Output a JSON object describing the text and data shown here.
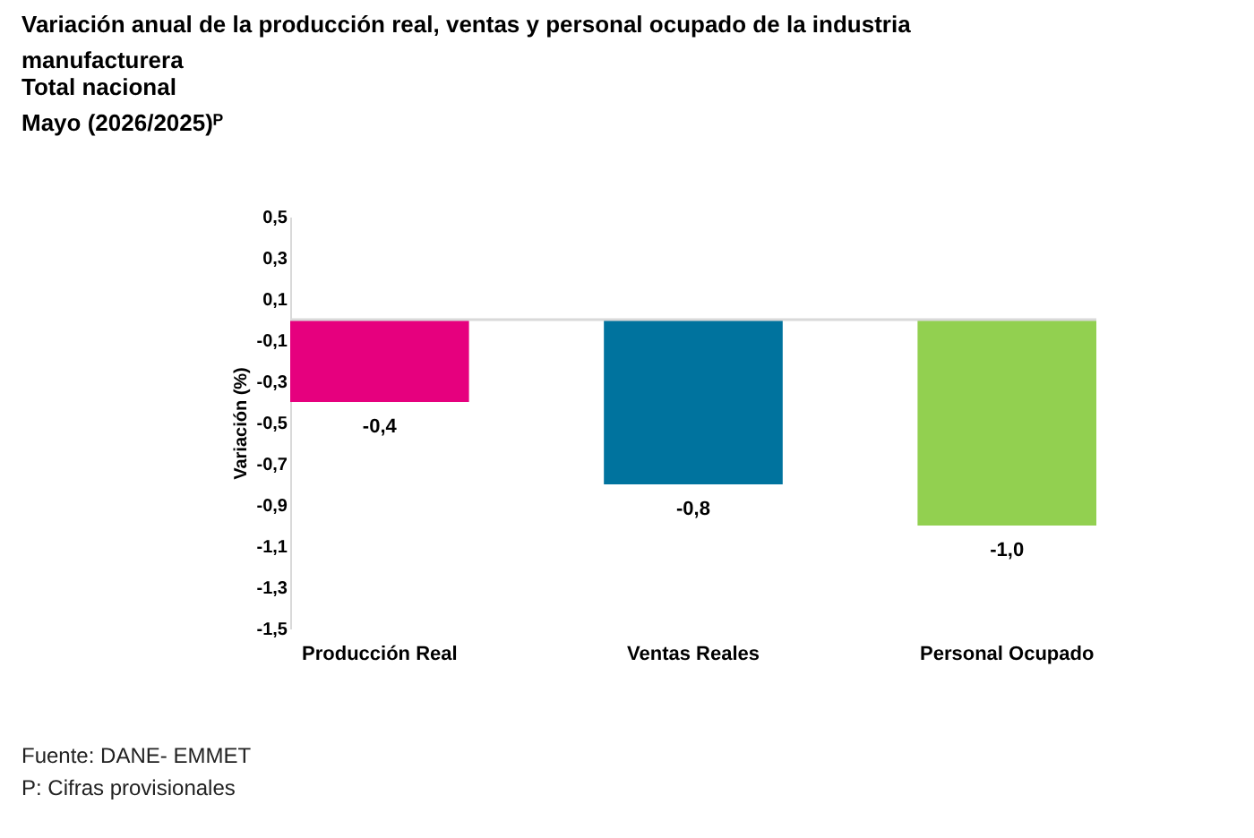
{
  "chart_data": {
    "type": "bar",
    "title": "Variación anual de la producción real, ventas y personal ocupado de la industria manufacturera",
    "subtitle": "Total nacional\nMayo (2026/2025)ᴾ",
    "ylabel": "Variación (%)",
    "categories": [
      "Producción Real",
      "Ventas Reales",
      "Personal Ocupado"
    ],
    "values": [
      -0.4,
      -0.8,
      -1.0
    ],
    "colors": [
      "#e6007e",
      "#00739e",
      "#92d050"
    ],
    "value_labels": [
      "-0,4",
      "-0,8",
      "-1,0"
    ],
    "ylim": [
      -1.5,
      0.5
    ],
    "yticks": [
      {
        "value": 0.5,
        "label": "0,5"
      },
      {
        "value": 0.3,
        "label": "0,3"
      },
      {
        "value": 0.1,
        "label": "0,1"
      },
      {
        "value": -0.1,
        "label": "-0,1"
      },
      {
        "value": -0.3,
        "label": "-0,3"
      },
      {
        "value": -0.5,
        "label": "-0,5"
      },
      {
        "value": -0.7,
        "label": "-0,7"
      },
      {
        "value": -0.9,
        "label": "-0,9"
      },
      {
        "value": -1.1,
        "label": "-1,1"
      },
      {
        "value": -1.3,
        "label": "-1,3"
      },
      {
        "value": -1.5,
        "label": "-1,5"
      }
    ],
    "ref_lines": [
      {
        "axis": "y",
        "value": 0,
        "color": "#d9d9d9"
      }
    ],
    "annotations": [
      "Fuente: DANE- EMMET",
      "P: Cifras provisionales"
    ]
  }
}
